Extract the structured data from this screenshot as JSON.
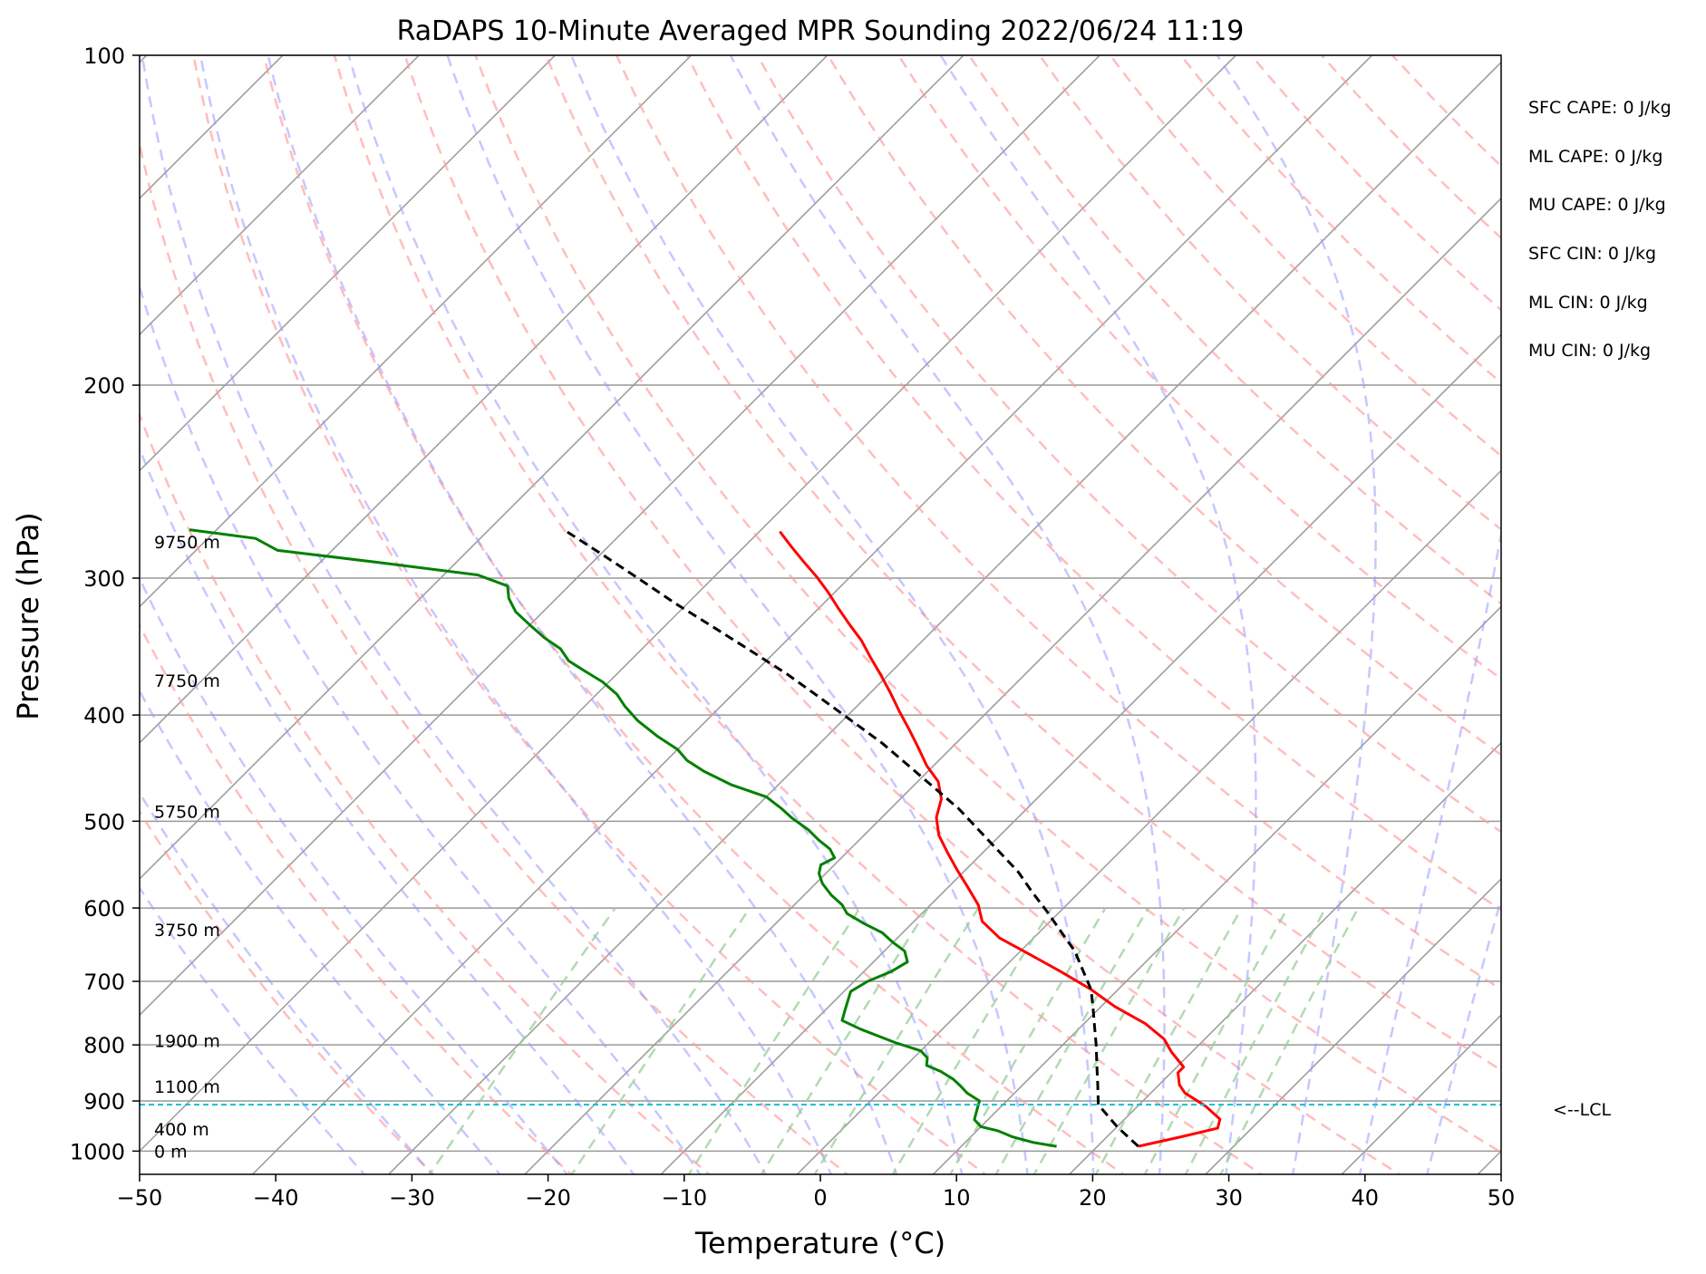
{
  "title": "RaDAPS 10-Minute Averaged MPR Sounding 2022/06/24 11:19",
  "xlabel": "Temperature (°C)",
  "ylabel": "Pressure (hPa)",
  "stats": [
    "SFC CAPE: 0 J/kg",
    "ML CAPE: 0 J/kg",
    "MU CAPE: 0 J/kg",
    "SFC CIN: 0 J/kg",
    "ML CIN: 0 J/kg",
    "MU CIN: 0 J/kg"
  ],
  "lcl_label": "<--LCL",
  "colors": {
    "temperature": "#ff0000",
    "dewpoint": "#008000",
    "parcel": "#000000",
    "lcl": "#17becf",
    "dry_adiabat": "#ff9999",
    "moist_adiabat": "#9999ff",
    "mixing_ratio": "#99cc99",
    "isotherm": "#999999",
    "isobar": "#999999"
  },
  "chart_data": {
    "type": "skew-t",
    "xlim": [
      -50,
      50
    ],
    "ylim_hpa": [
      1050,
      100
    ],
    "log_pressure": true,
    "grid": true,
    "x_ticks": [
      -50,
      -40,
      -30,
      -20,
      -10,
      0,
      10,
      20,
      30,
      40,
      50
    ],
    "x_tick_labels": [
      "−50",
      "−40",
      "−30",
      "−20",
      "−10",
      "0",
      "10",
      "20",
      "30",
      "40",
      "50"
    ],
    "y_ticks": [
      100,
      200,
      300,
      400,
      500,
      600,
      700,
      800,
      900,
      1000
    ],
    "y_tick_labels": [
      "100",
      "200",
      "300",
      "400",
      "500",
      "600",
      "700",
      "800",
      "900",
      "1000"
    ],
    "height_labels": [
      {
        "label": "0 m",
        "p": 1000
      },
      {
        "label": "400 m",
        "p": 955
      },
      {
        "label": "1100 m",
        "p": 873
      },
      {
        "label": "1900 m",
        "p": 793
      },
      {
        "label": "3750 m",
        "p": 628
      },
      {
        "label": "5750 m",
        "p": 490
      },
      {
        "label": "7750 m",
        "p": 372
      },
      {
        "label": "9750 m",
        "p": 278
      }
    ],
    "lcl_pressure": 907,
    "series": [
      {
        "key": "temperature",
        "points": [
          [
            23.0,
            990
          ],
          [
            25.5,
            970
          ],
          [
            27.5,
            953
          ],
          [
            27.0,
            935
          ],
          [
            25.0,
            910
          ],
          [
            22.5,
            885
          ],
          [
            21.5,
            870
          ],
          [
            20.5,
            848
          ],
          [
            20.5,
            838
          ],
          [
            18.5,
            812
          ],
          [
            17.0,
            790
          ],
          [
            14.5,
            765
          ],
          [
            11.0,
            738
          ],
          [
            8.0,
            712
          ],
          [
            4.5,
            686
          ],
          [
            1.0,
            662
          ],
          [
            -2.5,
            639
          ],
          [
            -5.0,
            617
          ],
          [
            -6.5,
            596
          ],
          [
            -8.5,
            575
          ],
          [
            -10.5,
            555
          ],
          [
            -12.5,
            535
          ],
          [
            -14.5,
            515
          ],
          [
            -16.0,
            496
          ],
          [
            -17.0,
            477
          ],
          [
            -18.5,
            460
          ],
          [
            -20.5,
            445
          ],
          [
            -22.5,
            428
          ],
          [
            -24.5,
            412
          ],
          [
            -26.5,
            397
          ],
          [
            -28.5,
            382
          ],
          [
            -30.5,
            368
          ],
          [
            -32.5,
            355
          ],
          [
            -34.5,
            342
          ],
          [
            -36.5,
            331
          ],
          [
            -38.5,
            320
          ],
          [
            -40.5,
            309
          ],
          [
            -42.5,
            299
          ],
          [
            -44.5,
            290
          ],
          [
            -46.5,
            281
          ],
          [
            -48.5,
            272
          ]
        ]
      },
      {
        "key": "dewpoint",
        "points": [
          [
            17.0,
            990
          ],
          [
            15.0,
            982
          ],
          [
            13.0,
            970
          ],
          [
            11.5,
            958
          ],
          [
            10.0,
            950
          ],
          [
            9.0,
            936
          ],
          [
            8.5,
            918
          ],
          [
            8.0,
            900
          ],
          [
            6.5,
            885
          ],
          [
            5.5,
            872
          ],
          [
            4.5,
            860
          ],
          [
            3.0,
            846
          ],
          [
            1.5,
            835
          ],
          [
            1.0,
            822
          ],
          [
            0.0,
            810
          ],
          [
            -2.5,
            796
          ],
          [
            -6.0,
            774
          ],
          [
            -8.0,
            760
          ],
          [
            -8.5,
            745
          ],
          [
            -9.0,
            730
          ],
          [
            -9.5,
            715
          ],
          [
            -9.0,
            700
          ],
          [
            -8.0,
            686
          ],
          [
            -7.5,
            672
          ],
          [
            -8.5,
            657
          ],
          [
            -10.0,
            645
          ],
          [
            -11.5,
            632
          ],
          [
            -13.5,
            620
          ],
          [
            -15.5,
            607
          ],
          [
            -16.5,
            596
          ],
          [
            -18.0,
            584
          ],
          [
            -19.5,
            570
          ],
          [
            -20.5,
            558
          ],
          [
            -21.0,
            548
          ],
          [
            -20.5,
            540
          ],
          [
            -21.5,
            530
          ],
          [
            -23.0,
            520
          ],
          [
            -24.5,
            509
          ],
          [
            -26.5,
            497
          ],
          [
            -28.0,
            487
          ],
          [
            -30.0,
            475
          ],
          [
            -33.5,
            463
          ],
          [
            -36.5,
            450
          ],
          [
            -38.5,
            440
          ],
          [
            -40.0,
            430
          ],
          [
            -42.5,
            418
          ],
          [
            -45.0,
            405
          ],
          [
            -47.0,
            393
          ],
          [
            -48.5,
            383
          ],
          [
            -50.5,
            373
          ],
          [
            -52.5,
            365
          ],
          [
            -54.5,
            357
          ],
          [
            -56.0,
            348
          ],
          [
            -58.0,
            340
          ],
          [
            -60.0,
            331
          ],
          [
            -62.0,
            322
          ],
          [
            -63.5,
            313
          ],
          [
            -64.5,
            305
          ],
          [
            -67.5,
            298
          ],
          [
            -76.0,
            290
          ],
          [
            -84.0,
            283
          ],
          [
            -86.5,
            276
          ],
          [
            -92.0,
            271
          ]
        ]
      },
      {
        "key": "parcel",
        "points": [
          [
            23.0,
            990
          ],
          [
            20.0,
            950
          ],
          [
            17.0,
            907
          ],
          [
            15.5,
            870
          ],
          [
            14.0,
            835
          ],
          [
            12.5,
            801
          ],
          [
            11.0,
            770
          ],
          [
            9.5,
            740
          ],
          [
            8.0,
            712
          ],
          [
            6.0,
            684
          ],
          [
            4.0,
            657
          ],
          [
            1.5,
            630
          ],
          [
            -1.0,
            604
          ],
          [
            -3.5,
            580
          ],
          [
            -6.0,
            556
          ],
          [
            -9.0,
            532
          ],
          [
            -12.0,
            509
          ],
          [
            -15.0,
            487
          ],
          [
            -18.5,
            465
          ],
          [
            -22.0,
            444
          ],
          [
            -25.5,
            424
          ],
          [
            -29.5,
            404
          ],
          [
            -33.5,
            385
          ],
          [
            -37.5,
            367
          ],
          [
            -42.0,
            349
          ],
          [
            -46.5,
            332
          ],
          [
            -51.0,
            316
          ],
          [
            -55.5,
            300
          ],
          [
            -60.0,
            285
          ],
          [
            -64.5,
            271
          ]
        ]
      }
    ],
    "dry_adiabat_thetas_k": [
      243,
      253,
      263,
      273,
      283,
      293,
      303,
      313,
      323,
      333,
      343,
      353,
      363,
      373,
      383,
      393,
      403,
      413,
      423,
      433,
      443,
      453
    ],
    "moist_adiabat_surface_temps_c": [
      -35,
      -30,
      -25,
      -20,
      -15,
      -10,
      -5,
      0,
      5,
      10,
      15,
      20,
      25,
      30,
      35,
      40,
      45
    ],
    "mixing_ratios_gkg": [
      0.4,
      1,
      2,
      3,
      4,
      6,
      8,
      10,
      12,
      16,
      20,
      24,
      28
    ],
    "isotherm_start_c": [
      -150,
      -140,
      -130,
      -120,
      -110,
      -100,
      -90,
      -80,
      -70,
      -60,
      -50,
      -40,
      -30,
      -20,
      -10,
      0,
      10,
      20,
      30,
      40,
      50
    ]
  }
}
